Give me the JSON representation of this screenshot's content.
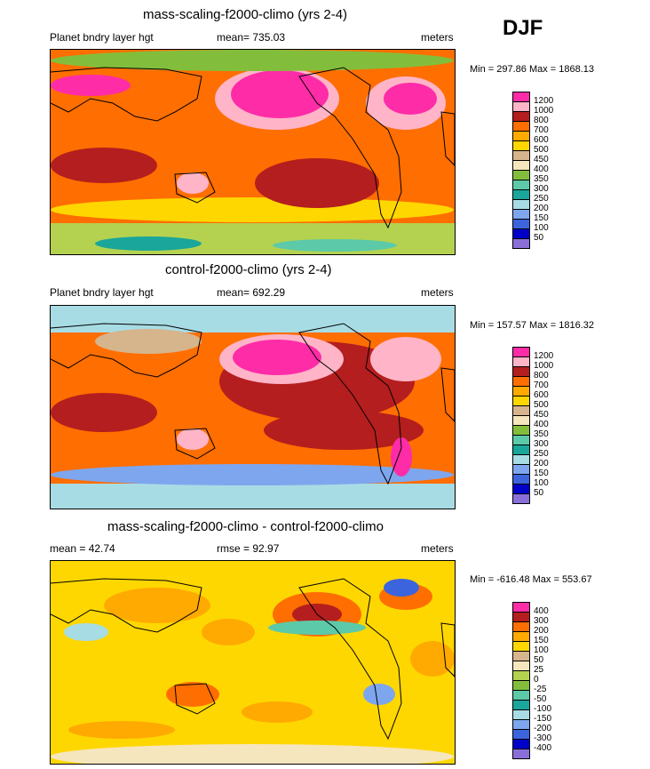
{
  "season": "DJF",
  "colors": {
    "levels": [
      "#ffffff",
      "#8a6fd8",
      "#0000c8",
      "#3c64dc",
      "#7ea6ee",
      "#a8dce4",
      "#1aa69a",
      "#5ccaa8",
      "#82be3c",
      "#b4d250",
      "#f6e6be",
      "#d6b48c",
      "#ffd700",
      "#ffaa00",
      "#ff6e00",
      "#ff3c00",
      "#b41e1e",
      "#ffb4c8",
      "#ff2ca8"
    ],
    "legend_abs": [
      "#8a6fd8",
      "#0000c8",
      "#3c64dc",
      "#7ea6ee",
      "#a8dce4",
      "#1aa69a",
      "#5ccaa8",
      "#82be3c",
      "#f6e6be",
      "#d6b48c",
      "#ffd700",
      "#ffaa00",
      "#ff6e00",
      "#b41e1e",
      "#ffb4c8",
      "#ff2ca8"
    ],
    "legend_diff": [
      "#8a6fd8",
      "#0000c8",
      "#3c64dc",
      "#7ea6ee",
      "#a8dce4",
      "#1aa69a",
      "#5ccaa8",
      "#82be3c",
      "#b4d250",
      "#f6e6be",
      "#d6b48c",
      "#ffd700",
      "#ffaa00",
      "#ff6e00",
      "#b41e1e",
      "#ff2ca8"
    ]
  },
  "panels": [
    {
      "title": "mass-scaling-f2000-climo (yrs 2-4)",
      "left_label": "Planet bndry layer hgt",
      "center_label": "mean= 735.03",
      "right_label": "meters",
      "minmax": "Min = 297.86 Max = 1868.13",
      "legend_labels": [
        "1200",
        "1000",
        "800",
        "700",
        "600",
        "500",
        "450",
        "400",
        "350",
        "300",
        "250",
        "200",
        "150",
        "100",
        "50"
      ]
    },
    {
      "title": "control-f2000-climo (yrs 2-4)",
      "left_label": "Planet bndry layer hgt",
      "center_label": "mean= 692.29",
      "right_label": "meters",
      "minmax": "Min = 157.57 Max = 1816.32",
      "legend_labels": [
        "1200",
        "1000",
        "800",
        "700",
        "600",
        "500",
        "450",
        "400",
        "350",
        "300",
        "250",
        "200",
        "150",
        "100",
        "50"
      ]
    },
    {
      "title": "mass-scaling-f2000-climo - control-f2000-climo",
      "left_label": "mean =  42.74",
      "center_label": "rmse =  92.97",
      "right_label": "meters",
      "minmax": "Min = -616.48 Max = 553.67",
      "legend_labels": [
        "400",
        "300",
        "200",
        "150",
        "100",
        "50",
        "25",
        "0",
        "-25",
        "-50",
        "-100",
        "-150",
        "-200",
        "-300",
        "-400"
      ]
    }
  ]
}
